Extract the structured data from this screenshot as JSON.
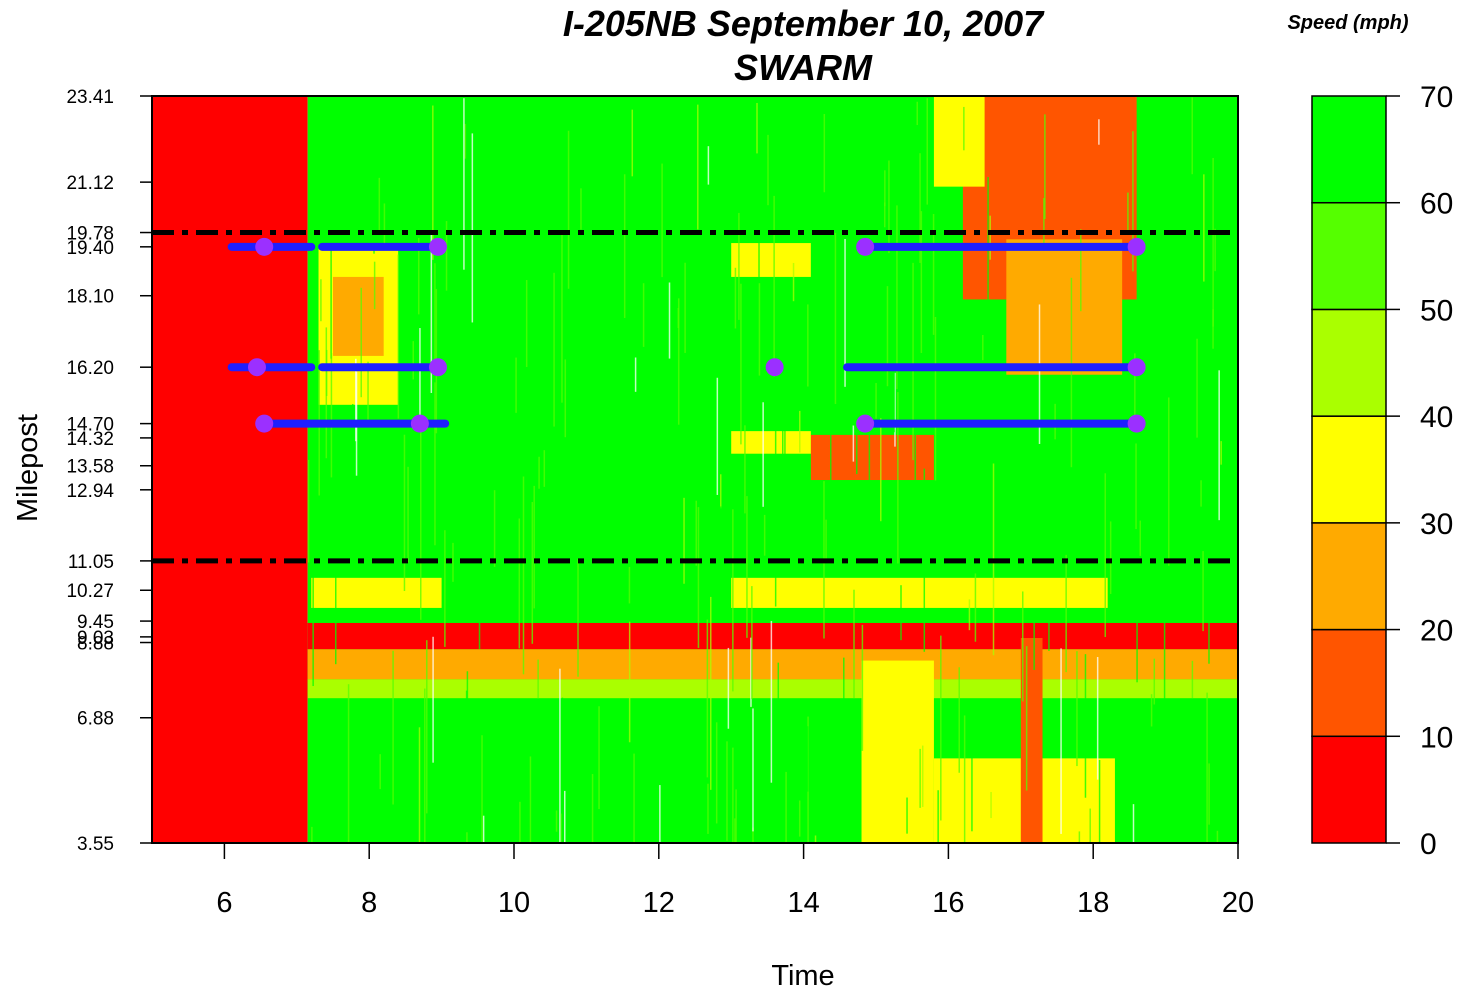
{
  "chart_data": {
    "type": "heatmap",
    "title": "I-205NB September 10, 2007",
    "subtitle": "SWARM",
    "xlabel": "Time",
    "ylabel": "Milepost",
    "xlim": [
      5,
      20
    ],
    "ylim": [
      3.55,
      23.41
    ],
    "x_ticks": [
      6,
      8,
      10,
      12,
      14,
      16,
      18,
      20
    ],
    "y_ticks": [
      "23.41",
      "21.12",
      "19.78",
      "19.40",
      "18.10",
      "16.20",
      "14.70",
      "14.32",
      "13.58",
      "12.94",
      "11.05",
      "10.27",
      "9.45",
      "9.03",
      "8.88",
      "6.88",
      "3.55"
    ],
    "colorbar": {
      "title": "Speed (mph)",
      "ticks": [
        70,
        60,
        50,
        40,
        30,
        20,
        10,
        0
      ],
      "bins": [
        {
          "min": 0,
          "max": 10,
          "color": "#ff0000"
        },
        {
          "min": 10,
          "max": 20,
          "color": "#ff5500"
        },
        {
          "min": 20,
          "max": 30,
          "color": "#ffaa00"
        },
        {
          "min": 30,
          "max": 40,
          "color": "#ffff00"
        },
        {
          "min": 40,
          "max": 50,
          "color": "#aaff00"
        },
        {
          "min": 50,
          "max": 60,
          "color": "#55ff00"
        },
        {
          "min": 60,
          "max": 70,
          "color": "#00ff00"
        }
      ]
    },
    "heat_regions": [
      {
        "x": [
          5,
          7.15
        ],
        "y": [
          3.55,
          23.41
        ],
        "speed": 0
      },
      {
        "x": [
          7.15,
          20
        ],
        "y": [
          3.55,
          23.41
        ],
        "speed": 60
      },
      {
        "x": [
          7.15,
          20
        ],
        "y": [
          8.7,
          9.4
        ],
        "speed": 5
      },
      {
        "x": [
          7.15,
          20
        ],
        "y": [
          7.9,
          8.7
        ],
        "speed": 25
      },
      {
        "x": [
          7.15,
          20
        ],
        "y": [
          7.4,
          7.9
        ],
        "speed": 45
      },
      {
        "x": [
          7.3,
          8.4
        ],
        "y": [
          15.2,
          19.4
        ],
        "speed": 35
      },
      {
        "x": [
          7.5,
          8.2
        ],
        "y": [
          16.5,
          18.6
        ],
        "speed": 25
      },
      {
        "x": [
          16.2,
          18.6
        ],
        "y": [
          18.0,
          23.41
        ],
        "speed": 15
      },
      {
        "x": [
          15.8,
          16.5
        ],
        "y": [
          21.0,
          23.41
        ],
        "speed": 30
      },
      {
        "x": [
          16.8,
          18.4
        ],
        "y": [
          16.0,
          19.6
        ],
        "speed": 25
      },
      {
        "x": [
          14.1,
          15.8
        ],
        "y": [
          13.2,
          14.4
        ],
        "speed": 15
      },
      {
        "x": [
          14.8,
          15.8
        ],
        "y": [
          3.55,
          8.4
        ],
        "speed": 30
      },
      {
        "x": [
          15.8,
          18.3
        ],
        "y": [
          3.55,
          5.8
        ],
        "speed": 35
      },
      {
        "x": [
          17.0,
          17.3
        ],
        "y": [
          3.55,
          9.0
        ],
        "speed": 10
      },
      {
        "x": [
          7.2,
          9.0
        ],
        "y": [
          9.8,
          10.6
        ],
        "speed": 38
      },
      {
        "x": [
          13.0,
          18.2
        ],
        "y": [
          9.8,
          10.6
        ],
        "speed": 38
      },
      {
        "x": [
          13.0,
          14.1
        ],
        "y": [
          18.6,
          19.5
        ],
        "speed": 38
      },
      {
        "x": [
          13.0,
          14.1
        ],
        "y": [
          13.9,
          14.5
        ],
        "speed": 38
      }
    ],
    "reference_lines": [
      19.78,
      11.05
    ],
    "series": [
      {
        "segments": [
          {
            "x": [
              6.1,
              7.2
            ],
            "y": 19.4
          },
          {
            "x": [
              7.35,
              9.0
            ],
            "y": 19.4
          },
          {
            "x": [
              14.8,
              18.6
            ],
            "y": 19.4
          },
          {
            "x": [
              6.1,
              7.2
            ],
            "y": 16.2
          },
          {
            "x": [
              7.35,
              9.0
            ],
            "y": 16.2
          },
          {
            "x": [
              14.6,
              18.6
            ],
            "y": 16.2
          },
          {
            "x": [
              6.6,
              9.05
            ],
            "y": 14.7
          },
          {
            "x": [
              14.8,
              18.6
            ],
            "y": 14.7
          }
        ]
      },
      {
        "points": [
          {
            "x": 6.55,
            "y": 19.4
          },
          {
            "x": 8.95,
            "y": 19.4
          },
          {
            "x": 14.85,
            "y": 19.4
          },
          {
            "x": 18.6,
            "y": 19.4
          },
          {
            "x": 6.45,
            "y": 16.2
          },
          {
            "x": 8.95,
            "y": 16.2
          },
          {
            "x": 13.6,
            "y": 16.2
          },
          {
            "x": 18.6,
            "y": 16.2
          },
          {
            "x": 6.55,
            "y": 14.7
          },
          {
            "x": 8.7,
            "y": 14.7
          },
          {
            "x": 14.85,
            "y": 14.7
          },
          {
            "x": 18.6,
            "y": 14.7
          }
        ]
      }
    ]
  }
}
